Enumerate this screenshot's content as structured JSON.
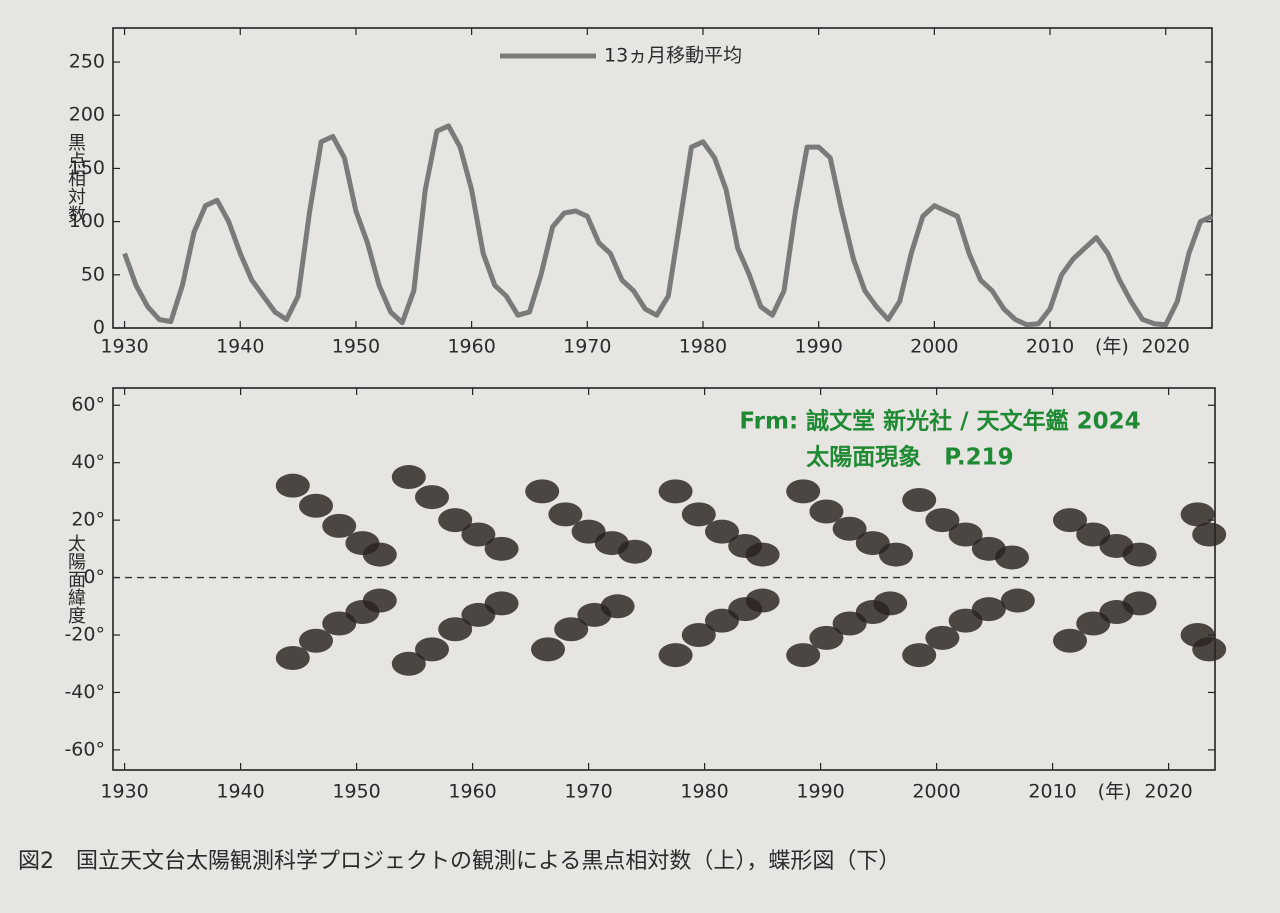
{
  "chart_data": [
    {
      "type": "line",
      "ylabel": "黒点相対数",
      "xlabel": "(年)",
      "legend": "13ヵ月移動平均",
      "color": "#7a7a7a",
      "xlim": [
        1929,
        2024
      ],
      "ylim": [
        0,
        282
      ],
      "xticks": [
        1930,
        1940,
        1950,
        1960,
        1970,
        1980,
        1990,
        2000,
        2010,
        2020
      ],
      "yticks": [
        0,
        50,
        100,
        150,
        200,
        250
      ],
      "x": [
        1930,
        1931,
        1932,
        1933,
        1934,
        1935,
        1936,
        1937,
        1938,
        1939,
        1940,
        1941,
        1942,
        1943,
        1944,
        1945,
        1946,
        1947,
        1948,
        1949,
        1950,
        1951,
        1952,
        1953,
        1954,
        1955,
        1956,
        1957,
        1958,
        1959,
        1960,
        1961,
        1962,
        1963,
        1964,
        1965,
        1966,
        1967,
        1968,
        1969,
        1970,
        1971,
        1972,
        1973,
        1974,
        1975,
        1976,
        1977,
        1978,
        1979,
        1980,
        1981,
        1982,
        1983,
        1984,
        1985,
        1986,
        1987,
        1988,
        1989,
        1990,
        1991,
        1992,
        1993,
        1994,
        1995,
        1996,
        1997,
        1998,
        1999,
        2000,
        2001,
        2002,
        2003,
        2004,
        2005,
        2006,
        2007,
        2008,
        2009,
        2010,
        2011,
        2012,
        2013,
        2014,
        2015,
        2016,
        2017,
        2018,
        2019,
        2020,
        2021,
        2022,
        2023,
        2024
      ],
      "values": [
        70,
        40,
        20,
        8,
        6,
        40,
        90,
        115,
        120,
        100,
        70,
        45,
        30,
        15,
        8,
        30,
        110,
        175,
        180,
        160,
        110,
        80,
        40,
        15,
        5,
        35,
        130,
        185,
        190,
        170,
        130,
        70,
        40,
        30,
        12,
        15,
        50,
        95,
        108,
        110,
        105,
        80,
        70,
        45,
        35,
        18,
        12,
        30,
        100,
        170,
        175,
        160,
        130,
        75,
        50,
        20,
        12,
        35,
        110,
        170,
        170,
        160,
        110,
        65,
        35,
        20,
        8,
        25,
        70,
        105,
        115,
        110,
        105,
        70,
        45,
        35,
        18,
        8,
        3,
        4,
        18,
        50,
        65,
        75,
        85,
        70,
        45,
        25,
        8,
        4,
        3,
        25,
        70,
        100,
        105
      ]
    },
    {
      "type": "scatter",
      "ylabel": "太陽面緯度",
      "xlabel": "(年)",
      "color": "#2a2220",
      "zero_line": true,
      "xlim": [
        1929,
        2024
      ],
      "ylim": [
        -67,
        66
      ],
      "xticks": [
        1930,
        1940,
        1950,
        1960,
        1970,
        1980,
        1990,
        2000,
        2010,
        2020
      ],
      "yticks": [
        {
          "value": 60,
          "label": "60°"
        },
        {
          "value": 40,
          "label": "40°"
        },
        {
          "value": 20,
          "label": "20°"
        },
        {
          "value": 0,
          "label": "0°"
        },
        {
          "value": -20,
          "label": "-20°"
        },
        {
          "value": -40,
          "label": "-40°"
        },
        {
          "value": -60,
          "label": "-60°"
        }
      ],
      "x": [
        1944.5,
        1946.5,
        1948.5,
        1950.5,
        1952,
        1944.5,
        1946.5,
        1948.5,
        1950.5,
        1952,
        1954.5,
        1956.5,
        1958.5,
        1960.5,
        1962.5,
        1954.5,
        1956.5,
        1958.5,
        1960.5,
        1962.5,
        1966,
        1968,
        1970,
        1972,
        1974,
        1966.5,
        1968.5,
        1970.5,
        1972.5,
        1977.5,
        1979.5,
        1981.5,
        1983.5,
        1985,
        1977.5,
        1979.5,
        1981.5,
        1983.5,
        1985,
        1988.5,
        1990.5,
        1992.5,
        1994.5,
        1996.5,
        1988.5,
        1990.5,
        1992.5,
        1994.5,
        1996,
        1998.5,
        2000.5,
        2002.5,
        2004.5,
        2006.5,
        1998.5,
        2000.5,
        2002.5,
        2004.5,
        2007,
        2011.5,
        2013.5,
        2015.5,
        2017.5,
        2011.5,
        2013.5,
        2015.5,
        2017.5,
        2022.5,
        2023.5,
        2022.5,
        2023.5
      ],
      "values": [
        32,
        25,
        18,
        12,
        8,
        -28,
        -22,
        -16,
        -12,
        -8,
        35,
        28,
        20,
        15,
        10,
        -30,
        -25,
        -18,
        -13,
        -9,
        30,
        22,
        16,
        12,
        9,
        -25,
        -18,
        -13,
        -10,
        30,
        22,
        16,
        11,
        8,
        -27,
        -20,
        -15,
        -11,
        -8,
        30,
        23,
        17,
        12,
        8,
        -27,
        -21,
        -16,
        -12,
        -9,
        27,
        20,
        15,
        10,
        7,
        -27,
        -21,
        -15,
        -11,
        -8,
        20,
        15,
        11,
        8,
        -22,
        -16,
        -12,
        -9,
        22,
        15,
        -20,
        -25
      ]
    }
  ],
  "annotations": [
    "Frm: 誠文堂 新光社 / 天文年鑑 2024",
    "太陽面現象　P.219"
  ],
  "caption": "図2　国立天文台太陽観測科学プロジェクトの観測による黒点相対数（上），蝶形図（下）"
}
